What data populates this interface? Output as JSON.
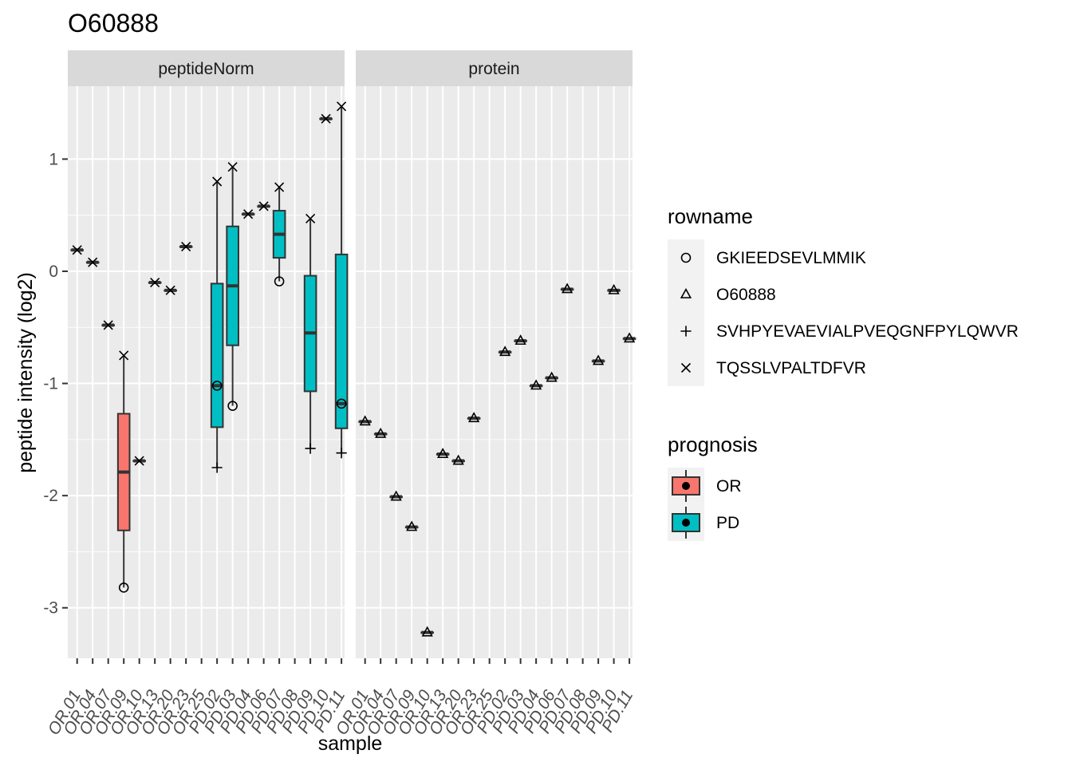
{
  "chart_data": {
    "type": "boxplot",
    "title": "O60888",
    "xlabel": "sample",
    "ylabel": "peptide intensity (log2)",
    "ylim": [
      -3.45,
      1.65
    ],
    "y_ticks": [
      1,
      0,
      -1,
      -2,
      -3
    ],
    "y_tick_labels": [
      "1",
      "0",
      "-1",
      "-2",
      "-3"
    ],
    "categories": [
      "OR.01",
      "OR.04",
      "OR.07",
      "OR.09",
      "OR.10",
      "OR.13",
      "OR.20",
      "OR.23",
      "OR.25",
      "PD.02",
      "PD.03",
      "PD.04",
      "PD.06",
      "PD.07",
      "PD.08",
      "PD.09",
      "PD.10",
      "PD.11"
    ],
    "grid": true,
    "facets": [
      {
        "label": "peptideNorm",
        "boxes": [
          {
            "sample": "OR.01",
            "prognosis": "OR",
            "lower": 0.19,
            "q1": 0.19,
            "median": 0.19,
            "q3": 0.19,
            "upper": 0.19
          },
          {
            "sample": "OR.04",
            "prognosis": "OR",
            "lower": 0.08,
            "q1": 0.08,
            "median": 0.08,
            "q3": 0.08,
            "upper": 0.08
          },
          {
            "sample": "OR.07",
            "prognosis": "OR",
            "lower": -0.48,
            "q1": -0.48,
            "median": -0.48,
            "q3": -0.48,
            "upper": -0.48
          },
          {
            "sample": "OR.09",
            "prognosis": "OR",
            "lower": -2.82,
            "q1": -2.31,
            "median": -1.79,
            "q3": -1.27,
            "upper": -0.75
          },
          {
            "sample": "OR.10",
            "prognosis": "OR",
            "lower": -1.69,
            "q1": -1.69,
            "median": -1.69,
            "q3": -1.69,
            "upper": -1.69
          },
          {
            "sample": "OR.13",
            "prognosis": "OR",
            "lower": -0.1,
            "q1": -0.1,
            "median": -0.1,
            "q3": -0.1,
            "upper": -0.1
          },
          {
            "sample": "OR.20",
            "prognosis": "OR",
            "lower": -0.17,
            "q1": -0.17,
            "median": -0.17,
            "q3": -0.17,
            "upper": -0.17
          },
          {
            "sample": "OR.23",
            "prognosis": "OR",
            "lower": 0.22,
            "q1": 0.22,
            "median": 0.22,
            "q3": 0.22,
            "upper": 0.22
          },
          {
            "sample": "PD.02",
            "prognosis": "PD",
            "lower": -1.75,
            "q1": -1.39,
            "median": -1.02,
            "q3": -0.11,
            "upper": 0.8
          },
          {
            "sample": "PD.03",
            "prognosis": "PD",
            "lower": -1.2,
            "q1": -0.66,
            "median": -0.13,
            "q3": 0.4,
            "upper": 0.93
          },
          {
            "sample": "PD.04",
            "prognosis": "PD",
            "lower": 0.51,
            "q1": 0.51,
            "median": 0.51,
            "q3": 0.51,
            "upper": 0.51
          },
          {
            "sample": "PD.06",
            "prognosis": "PD",
            "lower": 0.58,
            "q1": 0.58,
            "median": 0.58,
            "q3": 0.58,
            "upper": 0.58
          },
          {
            "sample": "PD.07",
            "prognosis": "PD",
            "lower": -0.09,
            "q1": 0.12,
            "median": 0.33,
            "q3": 0.54,
            "upper": 0.75
          },
          {
            "sample": "PD.09",
            "prognosis": "PD",
            "lower": -1.58,
            "q1": -1.07,
            "median": -0.55,
            "q3": -0.04,
            "upper": 0.47
          },
          {
            "sample": "PD.10",
            "prognosis": "PD",
            "lower": 1.36,
            "q1": 1.36,
            "median": 1.36,
            "q3": 1.36,
            "upper": 1.36
          },
          {
            "sample": "PD.11",
            "prognosis": "PD",
            "lower": -1.62,
            "q1": -1.4,
            "median": -1.18,
            "q3": 0.15,
            "upper": 1.47
          }
        ],
        "points": [
          {
            "sample": "OR.01",
            "rowname": "TQSSLVPALTDFVR",
            "y": 0.19
          },
          {
            "sample": "OR.04",
            "rowname": "TQSSLVPALTDFVR",
            "y": 0.08
          },
          {
            "sample": "OR.07",
            "rowname": "TQSSLVPALTDFVR",
            "y": -0.48
          },
          {
            "sample": "OR.09",
            "rowname": "TQSSLVPALTDFVR",
            "y": -0.75
          },
          {
            "sample": "OR.09",
            "rowname": "GKIEEDSEVLMMIK",
            "y": -2.82
          },
          {
            "sample": "OR.10",
            "rowname": "TQSSLVPALTDFVR",
            "y": -1.69
          },
          {
            "sample": "OR.13",
            "rowname": "TQSSLVPALTDFVR",
            "y": -0.1
          },
          {
            "sample": "OR.20",
            "rowname": "TQSSLVPALTDFVR",
            "y": -0.17
          },
          {
            "sample": "OR.23",
            "rowname": "TQSSLVPALTDFVR",
            "y": 0.22
          },
          {
            "sample": "PD.02",
            "rowname": "TQSSLVPALTDFVR",
            "y": 0.8
          },
          {
            "sample": "PD.02",
            "rowname": "GKIEEDSEVLMMIK",
            "y": -1.02
          },
          {
            "sample": "PD.02",
            "rowname": "SVHPYEVAEVIALPVEQGNFPYLQWVR",
            "y": -1.75
          },
          {
            "sample": "PD.03",
            "rowname": "TQSSLVPALTDFVR",
            "y": 0.93
          },
          {
            "sample": "PD.03",
            "rowname": "GKIEEDSEVLMMIK",
            "y": -1.2
          },
          {
            "sample": "PD.04",
            "rowname": "TQSSLVPALTDFVR",
            "y": 0.51
          },
          {
            "sample": "PD.06",
            "rowname": "TQSSLVPALTDFVR",
            "y": 0.58
          },
          {
            "sample": "PD.07",
            "rowname": "TQSSLVPALTDFVR",
            "y": 0.75
          },
          {
            "sample": "PD.07",
            "rowname": "GKIEEDSEVLMMIK",
            "y": -0.09
          },
          {
            "sample": "PD.09",
            "rowname": "TQSSLVPALTDFVR",
            "y": 0.47
          },
          {
            "sample": "PD.09",
            "rowname": "SVHPYEVAEVIALPVEQGNFPYLQWVR",
            "y": -1.58
          },
          {
            "sample": "PD.10",
            "rowname": "TQSSLVPALTDFVR",
            "y": 1.36
          },
          {
            "sample": "PD.11",
            "rowname": "TQSSLVPALTDFVR",
            "y": 1.47
          },
          {
            "sample": "PD.11",
            "rowname": "GKIEEDSEVLMMIK",
            "y": -1.18
          },
          {
            "sample": "PD.11",
            "rowname": "SVHPYEVAEVIALPVEQGNFPYLQWVR",
            "y": -1.62
          }
        ]
      },
      {
        "label": "protein",
        "boxes": [
          {
            "sample": "OR.01",
            "prognosis": "OR",
            "lower": -1.34,
            "q1": -1.34,
            "median": -1.34,
            "q3": -1.34,
            "upper": -1.34
          },
          {
            "sample": "OR.04",
            "prognosis": "OR",
            "lower": -1.45,
            "q1": -1.45,
            "median": -1.45,
            "q3": -1.45,
            "upper": -1.45
          },
          {
            "sample": "OR.07",
            "prognosis": "OR",
            "lower": -2.01,
            "q1": -2.01,
            "median": -2.01,
            "q3": -2.01,
            "upper": -2.01
          },
          {
            "sample": "OR.09",
            "prognosis": "OR",
            "lower": -2.28,
            "q1": -2.28,
            "median": -2.28,
            "q3": -2.28,
            "upper": -2.28
          },
          {
            "sample": "OR.10",
            "prognosis": "OR",
            "lower": -3.22,
            "q1": -3.22,
            "median": -3.22,
            "q3": -3.22,
            "upper": -3.22
          },
          {
            "sample": "OR.13",
            "prognosis": "OR",
            "lower": -1.63,
            "q1": -1.63,
            "median": -1.63,
            "q3": -1.63,
            "upper": -1.63
          },
          {
            "sample": "OR.20",
            "prognosis": "OR",
            "lower": -1.69,
            "q1": -1.69,
            "median": -1.69,
            "q3": -1.69,
            "upper": -1.69
          },
          {
            "sample": "OR.23",
            "prognosis": "OR",
            "lower": -1.31,
            "q1": -1.31,
            "median": -1.31,
            "q3": -1.31,
            "upper": -1.31
          },
          {
            "sample": "PD.02",
            "prognosis": "PD",
            "lower": -0.72,
            "q1": -0.72,
            "median": -0.72,
            "q3": -0.72,
            "upper": -0.72
          },
          {
            "sample": "PD.03",
            "prognosis": "PD",
            "lower": -0.62,
            "q1": -0.62,
            "median": -0.62,
            "q3": -0.62,
            "upper": -0.62
          },
          {
            "sample": "PD.04",
            "prognosis": "PD",
            "lower": -1.02,
            "q1": -1.02,
            "median": -1.02,
            "q3": -1.02,
            "upper": -1.02
          },
          {
            "sample": "PD.06",
            "prognosis": "PD",
            "lower": -0.95,
            "q1": -0.95,
            "median": -0.95,
            "q3": -0.95,
            "upper": -0.95
          },
          {
            "sample": "PD.07",
            "prognosis": "PD",
            "lower": -0.16,
            "q1": -0.16,
            "median": -0.16,
            "q3": -0.16,
            "upper": -0.16
          },
          {
            "sample": "PD.09",
            "prognosis": "PD",
            "lower": -0.8,
            "q1": -0.8,
            "median": -0.8,
            "q3": -0.8,
            "upper": -0.8
          },
          {
            "sample": "PD.10",
            "prognosis": "PD",
            "lower": -0.17,
            "q1": -0.17,
            "median": -0.17,
            "q3": -0.17,
            "upper": -0.17
          },
          {
            "sample": "PD.11",
            "prognosis": "PD",
            "lower": -0.6,
            "q1": -0.6,
            "median": -0.6,
            "q3": -0.6,
            "upper": -0.6
          }
        ],
        "points": [
          {
            "sample": "OR.01",
            "rowname": "O60888",
            "y": -1.34
          },
          {
            "sample": "OR.04",
            "rowname": "O60888",
            "y": -1.45
          },
          {
            "sample": "OR.07",
            "rowname": "O60888",
            "y": -2.01
          },
          {
            "sample": "OR.09",
            "rowname": "O60888",
            "y": -2.28
          },
          {
            "sample": "OR.10",
            "rowname": "O60888",
            "y": -3.22
          },
          {
            "sample": "OR.13",
            "rowname": "O60888",
            "y": -1.63
          },
          {
            "sample": "OR.20",
            "rowname": "O60888",
            "y": -1.69
          },
          {
            "sample": "OR.23",
            "rowname": "O60888",
            "y": -1.31
          },
          {
            "sample": "PD.02",
            "rowname": "O60888",
            "y": -0.72
          },
          {
            "sample": "PD.03",
            "rowname": "O60888",
            "y": -0.62
          },
          {
            "sample": "PD.04",
            "rowname": "O60888",
            "y": -1.02
          },
          {
            "sample": "PD.06",
            "rowname": "O60888",
            "y": -0.95
          },
          {
            "sample": "PD.07",
            "rowname": "O60888",
            "y": -0.16
          },
          {
            "sample": "PD.09",
            "rowname": "O60888",
            "y": -0.8
          },
          {
            "sample": "PD.10",
            "rowname": "O60888",
            "y": -0.17
          },
          {
            "sample": "PD.11",
            "rowname": "O60888",
            "y": -0.6
          }
        ]
      }
    ],
    "legends": [
      {
        "title": "rowname",
        "type": "shape",
        "items": [
          {
            "label": "GKIEEDSEVLMMIK",
            "shape": "circle"
          },
          {
            "label": "O60888",
            "shape": "triangle"
          },
          {
            "label": "SVHPYEVAEVIALPVEQGNFPYLQWVR",
            "shape": "plus"
          },
          {
            "label": "TQSSLVPALTDFVR",
            "shape": "cross"
          }
        ]
      },
      {
        "title": "prognosis",
        "type": "fill",
        "items": [
          {
            "label": "OR",
            "color": "#F8766D"
          },
          {
            "label": "PD",
            "color": "#00BFC4"
          }
        ]
      }
    ],
    "legend_position": "right",
    "colors": {
      "panel_background": "#EBEBEB",
      "strip_background": "#D9D9D9",
      "grid": "#FFFFFF",
      "OR": "#F8766D",
      "PD": "#00BFC4"
    }
  }
}
